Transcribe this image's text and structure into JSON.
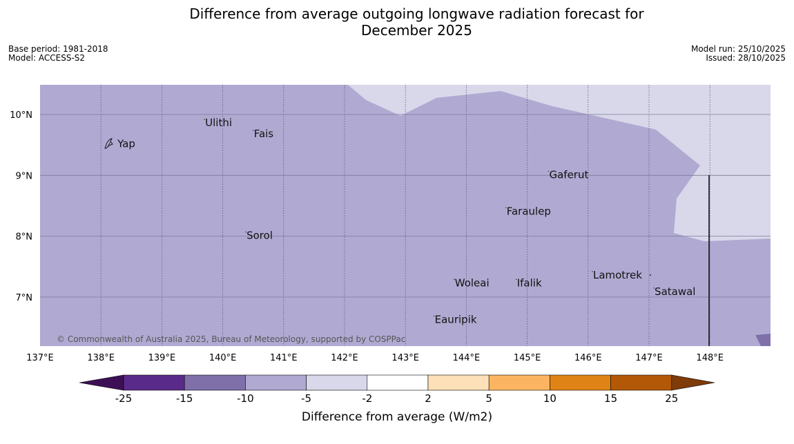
{
  "title_line1": "Difference from average outgoing longwave radiation forecast for",
  "title_line2": "December 2025",
  "meta": {
    "base_period": "Base period: 1981-2018",
    "model": "Model: ACCESS-S2",
    "model_run": "Model run: 25/10/2025",
    "issued": "Issued: 28/10/2025"
  },
  "map": {
    "lon_ticks": [
      "137°E",
      "138°E",
      "139°E",
      "140°E",
      "141°E",
      "142°E",
      "143°E",
      "144°E",
      "145°E",
      "146°E",
      "147°E",
      "148°E"
    ],
    "lat_ticks": [
      "10°N",
      "9°N",
      "8°N",
      "7°N"
    ],
    "places": [
      {
        "name": "Yap",
        "lon": 138.26,
        "lat": 9.51
      },
      {
        "name": "Ulithi",
        "lon": 139.7,
        "lat": 9.85
      },
      {
        "name": "Fais",
        "lon": 140.5,
        "lat": 9.67
      },
      {
        "name": "Gaferut",
        "lon": 145.35,
        "lat": 9.0
      },
      {
        "name": "Faraulep",
        "lon": 144.65,
        "lat": 8.4
      },
      {
        "name": "Sorol",
        "lon": 140.38,
        "lat": 8.0
      },
      {
        "name": "Lamotrek",
        "lon": 146.07,
        "lat": 7.35
      },
      {
        "name": "Woleai",
        "lon": 143.8,
        "lat": 7.22
      },
      {
        "name": "Ifalik",
        "lon": 144.82,
        "lat": 7.22
      },
      {
        "name": "Satawal",
        "lon": 147.08,
        "lat": 7.08
      },
      {
        "name": "Eauripik",
        "lon": 143.47,
        "lat": 6.62
      }
    ],
    "copyright": "© Commonwealth of Australia 2025, Bureau of Meteorology, supported by COSPPac"
  },
  "colorbar": {
    "label": "Difference from average (W/m2)",
    "ticks": [
      "-25",
      "-15",
      "-10",
      "-5",
      "-2",
      "2",
      "5",
      "10",
      "15",
      "25"
    ],
    "colors": {
      "lt_-25": "#3d1055",
      "neg25_neg15": "#5a2a8a",
      "neg15_neg10": "#8070aa",
      "neg10_neg5": "#b0aad2",
      "neg5_neg2": "#d8d8ea",
      "neg2_2": "#ffffff",
      "2_5": "#fde0b8",
      "5_10": "#fbb562",
      "10_15": "#e08316",
      "15_25": "#b35806",
      "gt_25": "#7f3b08"
    }
  }
}
